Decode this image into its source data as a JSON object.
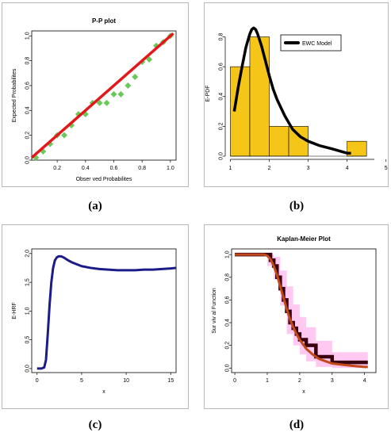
{
  "captions": [
    "(a)",
    "(b)",
    "(c)",
    "(d)"
  ],
  "chart_data": [
    {
      "id": "a",
      "type": "scatter",
      "title": "P-P plot",
      "xlabel": "Obser    ved Probabilites",
      "ylabel": "Expected Probabilites",
      "xlim": [
        0.02,
        1.04
      ],
      "ylim": [
        0.0,
        1.04
      ],
      "xticks": [
        0.2,
        0.4,
        0.6,
        0.8,
        1.0
      ],
      "yticks": [
        0.0,
        0.2,
        0.4,
        0.6,
        0.8,
        1.0
      ],
      "xtick_labels": [
        "0.2",
        "0.4",
        "0.6",
        "0.8",
        "1.0"
      ],
      "ytick_labels": [
        "0.0",
        "0.2",
        "0.4",
        "0.6",
        "0.8",
        "1.0"
      ],
      "points_color": "#6ac95a",
      "line_color": "#e4181c",
      "points": {
        "x": [
          0.05,
          0.1,
          0.15,
          0.2,
          0.25,
          0.3,
          0.35,
          0.4,
          0.45,
          0.5,
          0.55,
          0.6,
          0.65,
          0.7,
          0.75,
          0.8,
          0.85,
          0.9,
          0.95,
          1.0
        ],
        "y": [
          0.02,
          0.07,
          0.13,
          0.2,
          0.2,
          0.28,
          0.37,
          0.37,
          0.46,
          0.46,
          0.46,
          0.53,
          0.53,
          0.6,
          0.67,
          0.79,
          0.81,
          0.92,
          0.95,
          1.0
        ]
      },
      "line": {
        "x": [
          0.02,
          1.02
        ],
        "y": [
          0.02,
          1.02
        ]
      }
    },
    {
      "id": "b",
      "type": "bar",
      "xlabel": "",
      "ylabel": "E-PDF",
      "xlim": [
        0.95,
        4.7
      ],
      "ylim": [
        0.0,
        0.84
      ],
      "xticks": [
        1,
        2,
        3,
        4,
        5
      ],
      "yticks": [
        0.0,
        0.2,
        0.4,
        0.6,
        0.8
      ],
      "xtick_labels": [
        "1",
        "2",
        "3",
        "4",
        "5"
      ],
      "ytick_labels": [
        "0.0",
        "0.2",
        "0.4",
        "0.6",
        "0.8"
      ],
      "bar_color": "#f5c518",
      "bins": [
        {
          "start": 1.0,
          "end": 1.5,
          "value": 0.6
        },
        {
          "start": 1.5,
          "end": 2.0,
          "value": 0.8
        },
        {
          "start": 2.0,
          "end": 2.5,
          "value": 0.2
        },
        {
          "start": 2.5,
          "end": 3.0,
          "value": 0.2
        },
        {
          "start": 3.0,
          "end": 3.5,
          "value": 0.0
        },
        {
          "start": 3.5,
          "end": 4.0,
          "value": 0.0
        },
        {
          "start": 4.0,
          "end": 4.5,
          "value": 0.1
        }
      ],
      "legend": {
        "label": "EWC Model",
        "placement": "top-right"
      },
      "curve": {
        "name": "EWC Model",
        "color": "#000000",
        "x": [
          1.1,
          1.2,
          1.3,
          1.4,
          1.5,
          1.55,
          1.6,
          1.65,
          1.7,
          1.8,
          1.9,
          2.0,
          2.1,
          2.2,
          2.4,
          2.6,
          2.8,
          3.0,
          3.3,
          3.6,
          4.0,
          4.1
        ],
        "y": [
          0.3,
          0.46,
          0.6,
          0.73,
          0.82,
          0.85,
          0.86,
          0.85,
          0.82,
          0.74,
          0.64,
          0.54,
          0.45,
          0.38,
          0.27,
          0.18,
          0.13,
          0.1,
          0.07,
          0.05,
          0.02,
          0.02
        ]
      }
    },
    {
      "id": "c",
      "type": "line",
      "xlabel": "x",
      "ylabel": "E-HRF",
      "xlim": [
        -0.6,
        15.6
      ],
      "ylim": [
        -0.07,
        2.08
      ],
      "xticks": [
        0,
        5,
        10,
        15
      ],
      "yticks": [
        0.0,
        0.5,
        1.0,
        1.5,
        2.0
      ],
      "xtick_labels": [
        "0",
        "5",
        "10",
        "15"
      ],
      "ytick_labels": [
        "0.0",
        "0.5",
        "1.0",
        "1.5",
        "2.0"
      ],
      "line_color": "#1b1b8a",
      "series": [
        {
          "x": [
            0.0,
            0.5,
            0.8,
            1.0,
            1.2,
            1.4,
            1.6,
            1.8,
            2.0,
            2.2,
            2.4,
            2.7,
            3.0,
            3.5,
            4.0,
            5.0,
            6.0,
            7.0,
            8.0,
            9.0,
            10.0,
            11.0,
            12.0,
            13.0,
            14.0,
            15.0,
            15.6
          ],
          "y": [
            0.0,
            0.0,
            0.02,
            0.15,
            0.6,
            1.1,
            1.5,
            1.75,
            1.88,
            1.93,
            1.95,
            1.95,
            1.93,
            1.88,
            1.84,
            1.78,
            1.75,
            1.73,
            1.72,
            1.71,
            1.71,
            1.71,
            1.72,
            1.72,
            1.73,
            1.74,
            1.75
          ]
        }
      ]
    },
    {
      "id": "d",
      "type": "line",
      "title": "Kaplan-Meier Plot",
      "xlabel": "x",
      "ylabel": "Sur  viv  al Function",
      "xlim": [
        -0.1,
        4.35
      ],
      "ylim": [
        -0.04,
        1.05
      ],
      "xticks": [
        0,
        1,
        2,
        3,
        4
      ],
      "yticks": [
        0.0,
        0.2,
        0.4,
        0.6,
        0.8,
        1.0
      ],
      "xtick_labels": [
        "0",
        "1",
        "2",
        "3",
        "4"
      ],
      "ytick_labels": [
        "0.0",
        "0.2",
        "0.4",
        "0.6",
        "0.8",
        "1.0"
      ],
      "km_color": "#3b0010",
      "band_color": "#ffbfee",
      "fit_color": "#c24a1a",
      "km_step": {
        "x": [
          0.0,
          1.1,
          1.2,
          1.3,
          1.4,
          1.5,
          1.6,
          1.7,
          1.8,
          1.9,
          2.0,
          2.2,
          2.5,
          3.0,
          4.1
        ],
        "y": [
          1.0,
          0.95,
          0.9,
          0.8,
          0.7,
          0.6,
          0.5,
          0.4,
          0.35,
          0.3,
          0.25,
          0.2,
          0.1,
          0.05,
          0.05
        ]
      },
      "band": {
        "x": [
          1.0,
          1.2,
          1.4,
          1.6,
          1.8,
          2.0,
          2.2,
          2.5,
          3.0,
          4.1
        ],
        "upper": [
          1.0,
          0.98,
          0.86,
          0.72,
          0.56,
          0.45,
          0.36,
          0.24,
          0.14,
          0.14
        ],
        "lower": [
          0.9,
          0.78,
          0.55,
          0.3,
          0.2,
          0.12,
          0.06,
          0.01,
          0.0,
          0.0
        ]
      },
      "fit_curve": {
        "x": [
          0.0,
          0.9,
          1.0,
          1.1,
          1.2,
          1.3,
          1.4,
          1.5,
          1.6,
          1.7,
          1.8,
          1.9,
          2.0,
          2.2,
          2.4,
          2.6,
          2.8,
          3.0,
          3.3,
          3.6,
          4.0,
          4.1
        ],
        "y": [
          1.0,
          1.0,
          0.99,
          0.96,
          0.9,
          0.82,
          0.72,
          0.62,
          0.52,
          0.43,
          0.36,
          0.3,
          0.25,
          0.17,
          0.12,
          0.08,
          0.06,
          0.04,
          0.03,
          0.02,
          0.01,
          0.01
        ]
      }
    }
  ]
}
